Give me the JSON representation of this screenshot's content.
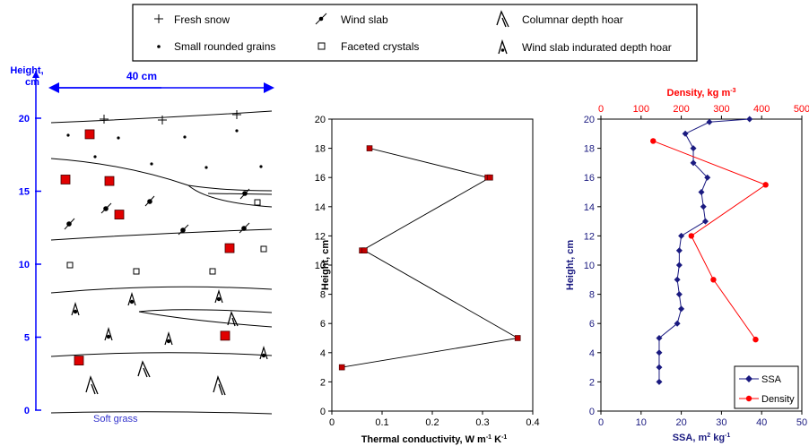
{
  "legend": {
    "items": [
      {
        "icon": "plus-icon",
        "label": "Fresh snow"
      },
      {
        "icon": "dot-icon",
        "label": "Small rounded grains"
      },
      {
        "icon": "wind-slab-icon",
        "label": "Wind slab"
      },
      {
        "icon": "square-icon",
        "label": "Faceted crystals"
      },
      {
        "icon": "columnar-depth-hoar-icon",
        "label": "Columnar depth hoar"
      },
      {
        "icon": "indurated-depth-hoar-icon",
        "label": "Wind slab indurated depth hoar"
      }
    ]
  },
  "profile": {
    "height_label": "Height,",
    "height_unit": "cm",
    "width_label": "40 cm",
    "ground_label": "Soft grass",
    "ticks": [
      "0",
      "5",
      "10",
      "15",
      "20"
    ],
    "colors": {
      "axis": "#0000ff",
      "sample": "#e00000"
    },
    "samples_cm": [
      18.9,
      15.8,
      15.7,
      13.4,
      11.1,
      5.1,
      3.4
    ]
  },
  "chart_data": [
    {
      "type": "line",
      "xlabel": "Thermal conductivity, W m",
      "xlabel_sup1": "-1",
      "xlabel_mid": " K",
      "xlabel_sup2": "-1",
      "ylabel": "Height, cm",
      "xlim": [
        0,
        0.4
      ],
      "ylim": [
        0,
        20
      ],
      "xticks": [
        "0",
        "0.1",
        "0.2",
        "0.3",
        "0.4"
      ],
      "yticks": [
        "0",
        "2",
        "4",
        "6",
        "8",
        "10",
        "12",
        "14",
        "16",
        "18",
        "20"
      ],
      "series": [
        {
          "color": "#c00000",
          "x": [
            0.075,
            0.31,
            0.315,
            0.06,
            0.065,
            0.37,
            0.02
          ],
          "y": [
            18,
            16,
            16,
            11,
            11,
            5,
            3
          ]
        }
      ]
    },
    {
      "type": "line",
      "ylabel": "Height, cm",
      "xlabel_bottom": "SSA, m",
      "xlabel_bottom_sup1": "2",
      "xlabel_bottom_mid": " kg",
      "xlabel_bottom_sup2": "-1",
      "xlabel_top": "Density, kg m",
      "xlabel_top_sup": "-3",
      "xlim_bottom": [
        0,
        50
      ],
      "xlim_top": [
        0,
        500
      ],
      "ylim": [
        0,
        20
      ],
      "xticks_bottom": [
        "0",
        "10",
        "20",
        "30",
        "40",
        "50"
      ],
      "xticks_top": [
        "0",
        "100",
        "200",
        "300",
        "400",
        "500"
      ],
      "yticks": [
        "0",
        "2",
        "4",
        "6",
        "8",
        "10",
        "12",
        "14",
        "16",
        "18",
        "20"
      ],
      "legend_position": "bottom-right",
      "series": [
        {
          "name": "SSA",
          "color": "#1a1a80",
          "axis": "bottom",
          "x": [
            37,
            27,
            21,
            23,
            23,
            26.5,
            25,
            25.5,
            26,
            20,
            19.5,
            19.5,
            19,
            19.5,
            20,
            19,
            14.5,
            14.5,
            14.5,
            14.5
          ],
          "y": [
            20,
            19.8,
            19,
            18,
            17,
            16,
            15,
            14,
            13,
            12,
            11,
            10,
            9,
            8,
            7,
            6,
            5,
            4,
            3,
            2
          ]
        },
        {
          "name": "Density",
          "color": "#ff0000",
          "axis": "top",
          "x": [
            130,
            410,
            225,
            280,
            385
          ],
          "y": [
            18.5,
            15.5,
            12,
            9,
            4.9
          ]
        }
      ]
    }
  ]
}
